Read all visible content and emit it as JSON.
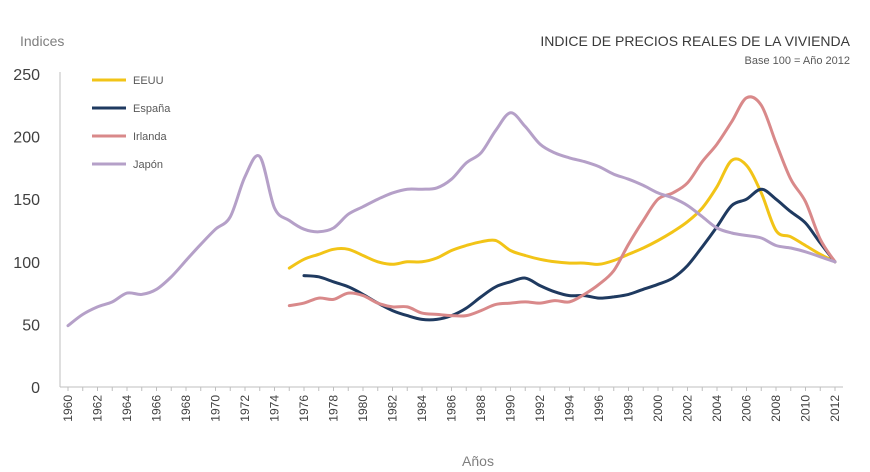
{
  "chart_data": {
    "type": "line",
    "title": "INDICE DE PRECIOS REALES DE LA VIVIENDA",
    "subtitle": "Base 100 = Año 2012",
    "ylabel": "Indices",
    "xlabel": "Años",
    "ylim": [
      0,
      250
    ],
    "yticks": [
      0,
      50,
      100,
      150,
      200,
      250
    ],
    "xlim": [
      1960,
      2012
    ],
    "xtick_labels": [
      "1960",
      "1962",
      "1964",
      "1966",
      "1968",
      "1970",
      "1972",
      "1974",
      "1976",
      "1978",
      "1980",
      "1982",
      "1984",
      "1986",
      "1988",
      "1990",
      "1992",
      "1994",
      "1996",
      "1998",
      "2000",
      "2002",
      "2004",
      "2006",
      "2008",
      "2010",
      "2012"
    ],
    "legend_position": "top-left",
    "series": [
      {
        "name": "EEUU",
        "color": "#F2C417",
        "x": [
          1975,
          1976,
          1977,
          1978,
          1979,
          1980,
          1981,
          1982,
          1983,
          1984,
          1985,
          1986,
          1987,
          1988,
          1989,
          1990,
          1991,
          1992,
          1993,
          1994,
          1995,
          1996,
          1997,
          1998,
          1999,
          2000,
          2001,
          2002,
          2003,
          2004,
          2005,
          2006,
          2007,
          2008,
          2009,
          2010,
          2011,
          2012
        ],
        "values": [
          95,
          102,
          106,
          110,
          110,
          105,
          100,
          98,
          100,
          100,
          103,
          109,
          113,
          116,
          117,
          109,
          105,
          102,
          100,
          99,
          99,
          98,
          101,
          106,
          111,
          117,
          124,
          132,
          143,
          160,
          181,
          177,
          155,
          125,
          120,
          113,
          106,
          100
        ]
      },
      {
        "name": "España",
        "color": "#1F3A60",
        "x": [
          1976,
          1977,
          1978,
          1979,
          1980,
          1981,
          1982,
          1983,
          1984,
          1985,
          1986,
          1987,
          1988,
          1989,
          1990,
          1991,
          1992,
          1993,
          1994,
          1995,
          1996,
          1997,
          1998,
          1999,
          2000,
          2001,
          2002,
          2003,
          2004,
          2005,
          2006,
          2007,
          2008,
          2009,
          2010,
          2011,
          2012
        ],
        "values": [
          89,
          88,
          84,
          80,
          74,
          67,
          61,
          57,
          54,
          54,
          57,
          63,
          72,
          80,
          84,
          87,
          81,
          76,
          73,
          73,
          71,
          72,
          74,
          78,
          82,
          87,
          97,
          112,
          128,
          145,
          150,
          158,
          150,
          140,
          131,
          115,
          100
        ]
      },
      {
        "name": "Irlanda",
        "color": "#D9898A",
        "x": [
          1975,
          1976,
          1977,
          1978,
          1979,
          1980,
          1981,
          1982,
          1983,
          1984,
          1985,
          1986,
          1987,
          1988,
          1989,
          1990,
          1991,
          1992,
          1993,
          1994,
          1995,
          1996,
          1997,
          1998,
          1999,
          2000,
          2001,
          2002,
          2003,
          2004,
          2005,
          2006,
          2007,
          2008,
          2009,
          2010,
          2011,
          2012
        ],
        "values": [
          65,
          67,
          71,
          70,
          75,
          73,
          67,
          64,
          64,
          59,
          58,
          57,
          57,
          61,
          66,
          67,
          68,
          67,
          69,
          68,
          74,
          82,
          93,
          114,
          133,
          150,
          155,
          163,
          180,
          194,
          212,
          231,
          225,
          195,
          166,
          148,
          118,
          100
        ]
      },
      {
        "name": "Japón",
        "color": "#B5A0C8",
        "x": [
          1960,
          1961,
          1962,
          1963,
          1964,
          1965,
          1966,
          1967,
          1968,
          1969,
          1970,
          1971,
          1972,
          1973,
          1974,
          1975,
          1976,
          1977,
          1978,
          1979,
          1980,
          1981,
          1982,
          1983,
          1984,
          1985,
          1986,
          1987,
          1988,
          1989,
          1990,
          1991,
          1992,
          1993,
          1994,
          1995,
          1996,
          1997,
          1998,
          1999,
          2000,
          2001,
          2002,
          2003,
          2004,
          2005,
          2006,
          2007,
          2008,
          2009,
          2010,
          2011,
          2012
        ],
        "values": [
          49,
          58,
          64,
          68,
          75,
          74,
          78,
          88,
          101,
          114,
          126,
          136,
          168,
          184,
          143,
          133,
          126,
          124,
          127,
          138,
          144,
          150,
          155,
          158,
          158,
          159,
          166,
          179,
          187,
          205,
          219,
          208,
          194,
          187,
          183,
          180,
          176,
          170,
          166,
          161,
          155,
          151,
          145,
          136,
          127,
          123,
          121,
          119,
          113,
          111,
          108,
          104,
          100
        ]
      }
    ]
  }
}
